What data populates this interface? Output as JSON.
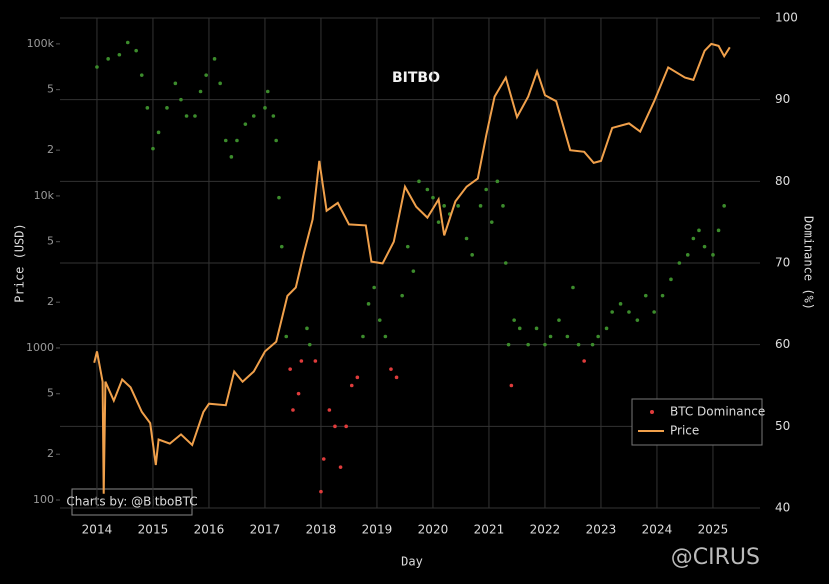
{
  "chart_data": {
    "type": "combo",
    "brand": "BITBO",
    "credit": "Charts by: @BitboBTC",
    "watermark": "@CIRUS",
    "x_label": "Day",
    "y_label": "Price (USD)",
    "y2_label": "Dominance (%)",
    "xlim": [
      2013.34,
      2025.84
    ],
    "xticks": [
      2014,
      2015,
      2016,
      2017,
      2018,
      2019,
      2020,
      2021,
      2022,
      2023,
      2024,
      2025
    ],
    "ylim": [
      88.6,
      148000
    ],
    "log_y": true,
    "yticks": [
      100,
      {
        "value": 200,
        "label": "2"
      },
      {
        "value": 500,
        "label": "5"
      },
      1000,
      {
        "value": 2000,
        "label": "2"
      },
      {
        "value": 5000,
        "label": "5"
      },
      {
        "value": 10000,
        "label": "10k"
      },
      {
        "value": 20000,
        "label": "2"
      },
      {
        "value": 50000,
        "label": "5"
      },
      {
        "value": 100000,
        "label": "100k"
      }
    ],
    "y2lim": [
      40,
      100
    ],
    "y2ticks": [
      40,
      50,
      60,
      70,
      80,
      90,
      100
    ],
    "grid": true,
    "legend": "lower right",
    "series": [
      {
        "name": "BTC Dominance",
        "type": "scatter",
        "axis": "y2",
        "color": "#3c8c2c",
        "color_below": {
          "value": 60,
          "color": "#e03c3c"
        },
        "x": [
          2014.0,
          2014.2,
          2014.4,
          2014.55,
          2014.7,
          2014.8,
          2014.9,
          2015.0,
          2015.1,
          2015.25,
          2015.4,
          2015.5,
          2015.6,
          2015.75,
          2015.85,
          2015.95,
          2016.1,
          2016.2,
          2016.3,
          2016.4,
          2016.5,
          2016.65,
          2016.8,
          2017.0,
          2017.05,
          2017.15,
          2017.2,
          2017.25,
          2017.3,
          2017.38,
          2017.45,
          2017.5,
          2017.6,
          2017.65,
          2017.75,
          2017.8,
          2017.9,
          2018.0,
          2018.05,
          2018.15,
          2018.25,
          2018.35,
          2018.45,
          2018.55,
          2018.65,
          2018.75,
          2018.85,
          2018.95,
          2019.05,
          2019.15,
          2019.25,
          2019.35,
          2019.45,
          2019.55,
          2019.65,
          2019.75,
          2019.9,
          2020.0,
          2020.1,
          2020.2,
          2020.3,
          2020.45,
          2020.6,
          2020.7,
          2020.85,
          2020.95,
          2021.05,
          2021.15,
          2021.25,
          2021.3,
          2021.35,
          2021.4,
          2021.45,
          2021.55,
          2021.7,
          2021.85,
          2022.0,
          2022.1,
          2022.25,
          2022.4,
          2022.5,
          2022.6,
          2022.7,
          2022.85,
          2022.95,
          2023.1,
          2023.2,
          2023.35,
          2023.5,
          2023.65,
          2023.8,
          2023.95,
          2024.1,
          2024.25,
          2024.4,
          2024.55,
          2024.65,
          2024.75,
          2024.85,
          2025.0,
          2025.1,
          2025.2
        ],
        "values": [
          94,
          95,
          95.5,
          97,
          96,
          93,
          89,
          84,
          86,
          89,
          92,
          90,
          88,
          88,
          91,
          93,
          95,
          92,
          85,
          83,
          85,
          87,
          88,
          89,
          91,
          88,
          85,
          78,
          72,
          61,
          57,
          52,
          54,
          58,
          62,
          60,
          58,
          42,
          46,
          52,
          50,
          45,
          50,
          55,
          56,
          61,
          65,
          67,
          63,
          61,
          57,
          56,
          66,
          72,
          69,
          80,
          79,
          78,
          75,
          77,
          76,
          77,
          73,
          71,
          77,
          79,
          75,
          80,
          77,
          70,
          60,
          55,
          63,
          62,
          60,
          62,
          60,
          61,
          63,
          61,
          67,
          60,
          58,
          60,
          61,
          62,
          64,
          65,
          64,
          63,
          66,
          64,
          66,
          68,
          70,
          71,
          73,
          74,
          72,
          71,
          74,
          77
        ]
      },
      {
        "name": "Price",
        "type": "line",
        "color": "#f0a04b",
        "x": [
          2013.95,
          2014.0,
          2014.1,
          2014.12,
          2014.15,
          2014.3,
          2014.45,
          2014.6,
          2014.8,
          2014.95,
          2015.05,
          2015.1,
          2015.3,
          2015.5,
          2015.7,
          2015.9,
          2016.0,
          2016.3,
          2016.45,
          2016.6,
          2016.8,
          2017.0,
          2017.2,
          2017.4,
          2017.55,
          2017.7,
          2017.85,
          2017.97,
          2018.1,
          2018.3,
          2018.5,
          2018.8,
          2018.9,
          2019.1,
          2019.3,
          2019.5,
          2019.7,
          2019.9,
          2020.1,
          2020.2,
          2020.4,
          2020.6,
          2020.8,
          2020.95,
          2021.1,
          2021.3,
          2021.5,
          2021.7,
          2021.86,
          2022.0,
          2022.2,
          2022.45,
          2022.7,
          2022.87,
          2023.0,
          2023.2,
          2023.5,
          2023.7,
          2023.95,
          2024.2,
          2024.5,
          2024.65,
          2024.85,
          2024.97,
          2025.1,
          2025.2,
          2025.3
        ],
        "values": [
          800,
          950,
          600,
          110,
          600,
          450,
          620,
          550,
          380,
          320,
          170,
          250,
          235,
          270,
          230,
          380,
          430,
          420,
          700,
          600,
          700,
          950,
          1100,
          2200,
          2500,
          4300,
          7000,
          17000,
          8000,
          9000,
          6500,
          6400,
          3700,
          3600,
          5000,
          11500,
          8500,
          7200,
          9500,
          5500,
          9200,
          11500,
          13000,
          25000,
          45000,
          60000,
          33000,
          45000,
          66000,
          46000,
          42000,
          20000,
          19500,
          16500,
          17000,
          28000,
          30000,
          26500,
          42000,
          70000,
          60000,
          58000,
          90000,
          100000,
          97000,
          83000,
          95000
        ]
      }
    ]
  }
}
